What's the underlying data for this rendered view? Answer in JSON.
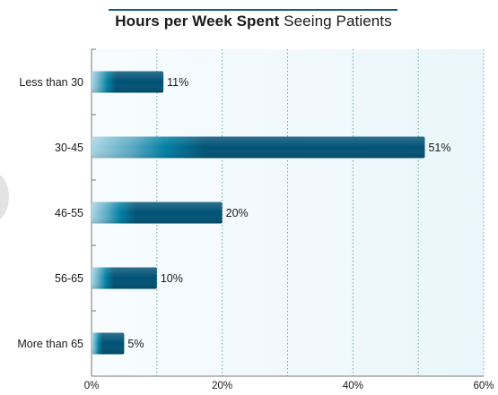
{
  "chart_data": {
    "type": "bar",
    "orientation": "horizontal",
    "title_bold": "Hours per Week Spent",
    "title_regular": " Seeing Patients",
    "categories": [
      "Less than 30",
      "30-45",
      "46-55",
      "56-65",
      "More than 65"
    ],
    "values": [
      11,
      51,
      20,
      10,
      5
    ],
    "value_labels": [
      "11%",
      "51%",
      "20%",
      "10%",
      "5%"
    ],
    "xlim": [
      0,
      60
    ],
    "x_ticks": [
      0,
      20,
      40,
      60
    ],
    "x_tick_labels": [
      "0%",
      "20%",
      "40%",
      "60%"
    ],
    "grid": "vertical dotted every 10%",
    "colors": {
      "bar_dark": "#005275",
      "bar_mid": "#007fa3",
      "bar_light": "#a9d6e5",
      "plot_bg": "#f1f9fc",
      "grid": "#6aa890",
      "title_rule": "#0d5f80"
    }
  }
}
